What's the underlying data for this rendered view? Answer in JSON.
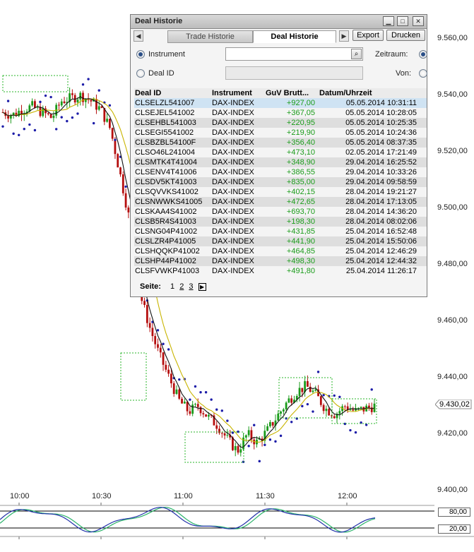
{
  "dialog": {
    "title": "Deal Historie",
    "tabs": [
      {
        "label": "Trade Historie",
        "active": false
      },
      {
        "label": "Deal Historie",
        "active": true
      }
    ],
    "export_label": "Export",
    "print_label": "Drucken",
    "filter": {
      "instrument_label": "Instrument",
      "deal_id_label": "Deal ID",
      "instrument_value": "",
      "deal_id_value": "",
      "zeitraum_label": "Zeitraum:",
      "von_label": "Von:"
    },
    "columns": [
      "Deal ID",
      "Instrument",
      "GuV Brutt...",
      "Datum/Uhrzeit"
    ],
    "rows": [
      [
        "CLSELZL541007",
        "DAX-INDEX",
        "+927,00",
        "05.05.2014 10:31:11"
      ],
      [
        "CLSEJEL541002",
        "DAX-INDEX",
        "+367,05",
        "05.05.2014 10:28:05"
      ],
      [
        "CLSEHBL541003",
        "DAX-INDEX",
        "+220,95",
        "05.05.2014 10:25:35"
      ],
      [
        "CLSEGI5541002",
        "DAX-INDEX",
        "+219,90",
        "05.05.2014 10:24:36"
      ],
      [
        "CLSBZBL54100F",
        "DAX-INDEX",
        "+356,40",
        "05.05.2014 08:37:35"
      ],
      [
        "CLSO46L241004",
        "DAX-INDEX",
        "+473,10",
        "02.05.2014 17:21:49"
      ],
      [
        "CLSMTK4T41004",
        "DAX-INDEX",
        "+348,90",
        "29.04.2014 16:25:52"
      ],
      [
        "CLSENV4T41006",
        "DAX-INDEX",
        "+386,55",
        "29.04.2014 10:33:26"
      ],
      [
        "CLSDV5KT41003",
        "DAX-INDEX",
        "+835,00",
        "29.04.2014 09:58:59"
      ],
      [
        "CLSQVVKS41002",
        "DAX-INDEX",
        "+402,15",
        "28.04.2014 19:21:27"
      ],
      [
        "CLSNWWKS41005",
        "DAX-INDEX",
        "+472,65",
        "28.04.2014 17:13:05"
      ],
      [
        "CLSKAA4S41002",
        "DAX-INDEX",
        "+693,70",
        "28.04.2014 14:36:20"
      ],
      [
        "CLSB5R4S41003",
        "DAX-INDEX",
        "+198,30",
        "28.04.2014 08:02:06"
      ],
      [
        "CLSNG04P41002",
        "DAX-INDEX",
        "+431,85",
        "25.04.2014 16:52:48"
      ],
      [
        "CLSLZR4P41005",
        "DAX-INDEX",
        "+441,90",
        "25.04.2014 15:50:06"
      ],
      [
        "CLSHQQKP41002",
        "DAX-INDEX",
        "+464,85",
        "25.04.2014 12:46:29"
      ],
      [
        "CLSHP44P41002",
        "DAX-INDEX",
        "+498,30",
        "25.04.2014 12:44:32"
      ],
      [
        "CLSFVWKP41003",
        "DAX-INDEX",
        "+491,80",
        "25.04.2014 11:26:17"
      ]
    ],
    "pager": {
      "label": "Seite:",
      "pages": [
        "1",
        "2",
        "3"
      ],
      "current": "1"
    }
  },
  "chart": {
    "y_ticks": [
      "9.560,00",
      "9.540,00",
      "9.520,00",
      "9.500,00",
      "9.480,00",
      "9.460,00",
      "9.440,00",
      "9.420,00",
      "9.400,00"
    ],
    "x_ticks": [
      "10:00",
      "10:30",
      "11:00",
      "11:30",
      "12:00"
    ],
    "current_price": "9.430,02",
    "oscillator_levels": [
      "80,00",
      "20,00"
    ]
  },
  "chart_data": {
    "type": "candlestick",
    "x_ticks": [
      "10:00",
      "10:30",
      "11:00",
      "11:30",
      "12:00"
    ],
    "y_range": [
      9400,
      9560
    ],
    "current_price": 9430.02,
    "close_approx": [
      9534,
      9533,
      9535,
      9536,
      9534,
      9532,
      9538,
      9539,
      9540,
      9538,
      9535,
      9528,
      9512,
      9495,
      9470,
      9458,
      9448,
      9440,
      9432,
      9428,
      9430,
      9426,
      9423,
      9418,
      9414,
      9420,
      9417,
      9421,
      9426,
      9431,
      9435,
      9437,
      9434,
      9429,
      9427,
      9430,
      9428,
      9429,
      9430
    ],
    "colors": {
      "up": "#1a9a1a",
      "down": "#b50e0e",
      "sar": "#1c1ca8",
      "ma_fast": "#111111",
      "ma_slow": "#c8b400"
    }
  }
}
